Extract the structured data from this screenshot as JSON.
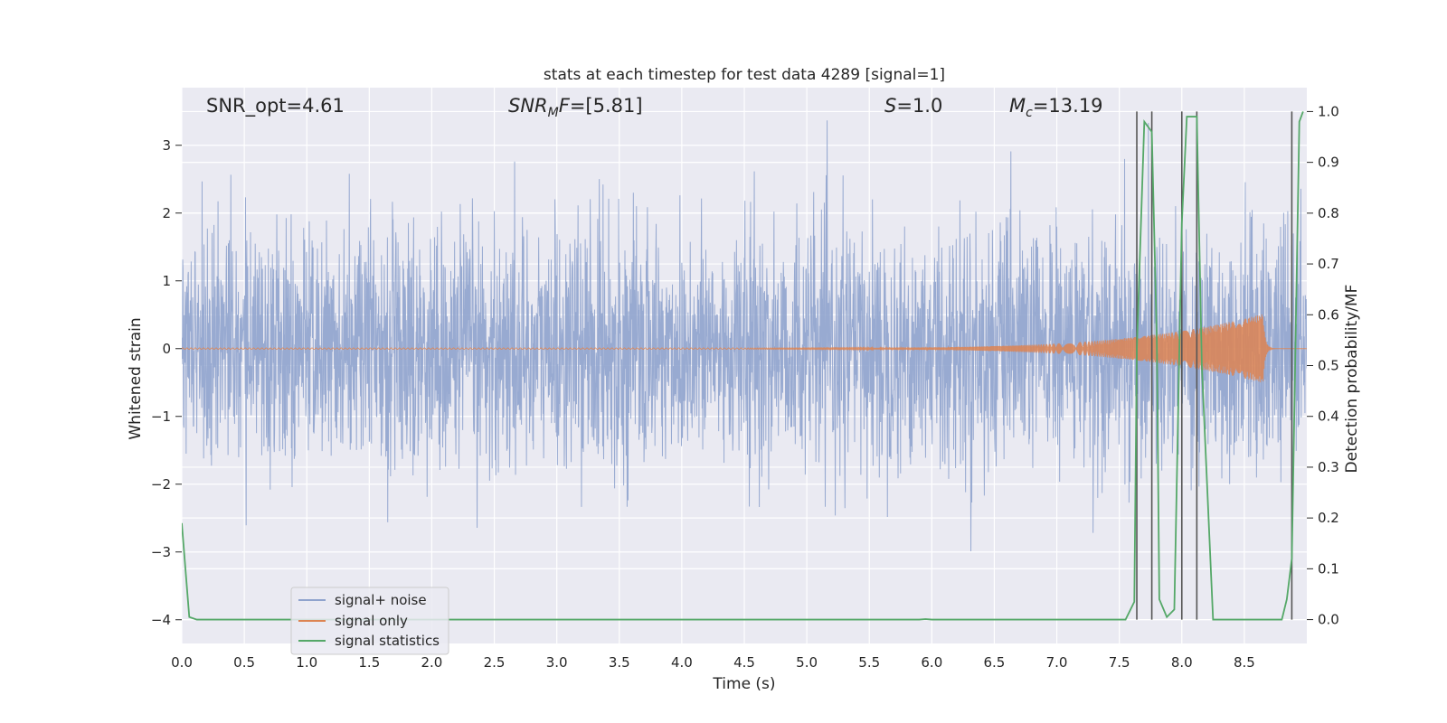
{
  "chart_data": {
    "type": "line",
    "title": "stats at each timestep for test data 4289 [signal=1]",
    "xlabel": "Time (s)",
    "ylabel_left": "Whitened strain",
    "ylabel_right": "Detection probability/MF",
    "xlim": [
      0.0,
      9.0
    ],
    "ylim_left": [
      -4.35,
      3.85
    ],
    "ylim_right": [
      -0.047,
      1.047
    ],
    "x_ticks": [
      "0.0",
      "0.5",
      "1.0",
      "1.5",
      "2.0",
      "2.5",
      "3.0",
      "3.5",
      "4.0",
      "4.5",
      "5.0",
      "5.5",
      "6.0",
      "6.5",
      "7.0",
      "7.5",
      "8.0",
      "8.5"
    ],
    "y_ticks_left": [
      "−4",
      "−3",
      "−2",
      "−1",
      "0",
      "1",
      "2",
      "3"
    ],
    "y_ticks_right": [
      "0.0",
      "0.1",
      "0.2",
      "0.3",
      "0.4",
      "0.5",
      "0.6",
      "0.7",
      "0.8",
      "0.9",
      "1.0"
    ],
    "grid": true,
    "legend_position": "lower-left",
    "annotations": {
      "snr_opt": "SNR_opt=4.61",
      "snr_mf_prefix": "SNR",
      "snr_mf_sub": "M",
      "snr_mf_suffix": "F=[5.81]",
      "s_sym": "S",
      "s_value": "=1.0",
      "mc_sym": "M",
      "mc_sub": "c",
      "mc_value": "=13.19"
    },
    "series": [
      {
        "name": "signal+ noise",
        "color": "#8FA3CD",
        "envelope": {
          "typical_abs": 1.6,
          "peak_abs": 3.5,
          "description": "dense white-noise strain"
        }
      },
      {
        "name": "signal only",
        "color": "#DD8452",
        "chirp": {
          "start_s": 4.5,
          "peak_s": 8.65,
          "peak_amplitude": 0.5
        }
      },
      {
        "name": "signal statistics",
        "color": "#55A868",
        "x": [
          0.0,
          0.06,
          0.12,
          2.0,
          4.0,
          5.9,
          5.95,
          6.0,
          7.55,
          7.62,
          7.64,
          7.7,
          7.76,
          7.8,
          7.82,
          7.88,
          7.94,
          8.0,
          8.04,
          8.06,
          8.1,
          8.12,
          8.16,
          8.25,
          8.5,
          8.8,
          8.84,
          8.88,
          8.94,
          8.97
        ],
        "y": [
          0.19,
          0.005,
          0.0,
          0.0,
          0.0,
          0.0,
          0.001,
          0.0,
          0.0,
          0.035,
          0.53,
          0.98,
          0.96,
          0.55,
          0.04,
          0.005,
          0.02,
          0.78,
          0.99,
          0.99,
          0.99,
          0.99,
          0.5,
          0.0,
          0.0,
          0.0,
          0.04,
          0.12,
          0.98,
          1.0
        ]
      }
    ],
    "detection_lines_s": [
      7.64,
      7.76,
      8.0,
      8.12,
      8.88
    ]
  }
}
